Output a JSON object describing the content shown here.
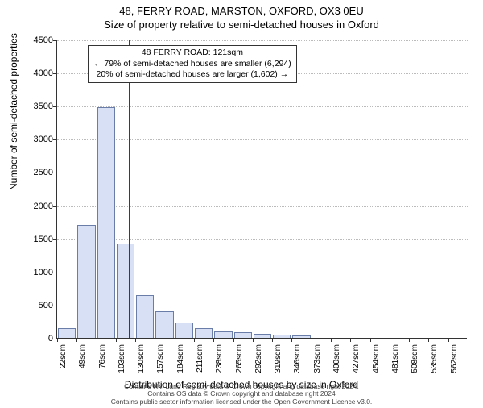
{
  "title_line1": "48, FERRY ROAD, MARSTON, OXFORD, OX3 0EU",
  "title_line2": "Size of property relative to semi-detached houses in Oxford",
  "ylabel": "Number of semi-detached properties",
  "xlabel": "Distribution of semi-detached houses by size in Oxford",
  "footer_line1": "Contains HM Land Registry data © Crown copyright and database right 2024.",
  "footer_line2": "Contains OS data © Crown copyright and database right 2024",
  "footer_line3": "Contains public sector information licensed under the Open Government Licence v3.0.",
  "annotation": {
    "line1": "48 FERRY ROAD: 121sqm",
    "line2": "← 79% of semi-detached houses are smaller (6,294)",
    "line3": "20% of semi-detached houses are larger (1,602) →"
  },
  "chart": {
    "type": "histogram",
    "background_color": "#ffffff",
    "grid_color": "#bbbbbb",
    "axis_color": "#333333",
    "bar_fill": "#d7e0f4",
    "bar_stroke": "#6a7da8",
    "marker_color": "#cc0000",
    "marker_x_value": 121,
    "ylim": [
      0,
      4500
    ],
    "ytick_step": 500,
    "x_start": 22,
    "x_step": 27,
    "x_count": 21,
    "x_unit": "sqm",
    "bars": [
      150,
      1700,
      3480,
      1420,
      650,
      400,
      230,
      150,
      100,
      80,
      60,
      45,
      40,
      0,
      0,
      0,
      0,
      0,
      0,
      0,
      0
    ],
    "label_fontsize": 12,
    "tick_fontsize": 11
  }
}
